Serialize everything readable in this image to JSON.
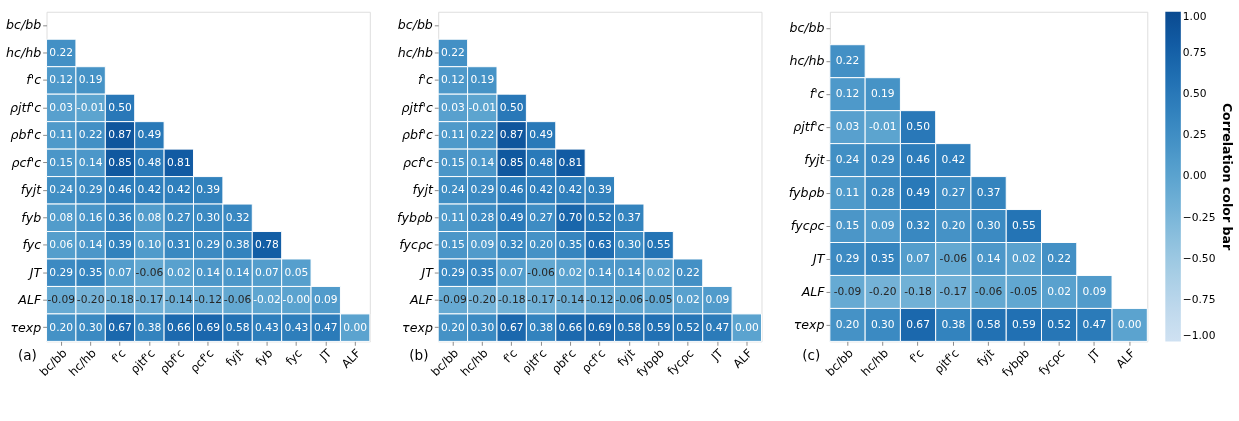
{
  "chart_data": [
    {
      "type": "heatmap",
      "annotations": [
        "(a)"
      ],
      "categories": [
        "bc/bb",
        "hc/hb",
        "f'c",
        "ρjtf'c",
        "ρbf'c",
        "ρcf'c",
        "fyjt",
        "fyb",
        "fyc",
        "JT",
        "ALF"
      ],
      "y_categories": [
        "bc/bb",
        "hc/hb",
        "f'c",
        "ρjtf'c",
        "ρbf'c",
        "ρcf'c",
        "fyjt",
        "fyb",
        "fyc",
        "JT",
        "ALF",
        "τexp"
      ],
      "cells": [
        [
          null,
          null,
          null,
          null,
          null,
          null,
          null,
          null,
          null,
          null,
          null
        ],
        [
          0.22,
          null,
          null,
          null,
          null,
          null,
          null,
          null,
          null,
          null,
          null
        ],
        [
          0.12,
          0.19,
          null,
          null,
          null,
          null,
          null,
          null,
          null,
          null,
          null
        ],
        [
          0.03,
          -0.01,
          0.5,
          null,
          null,
          null,
          null,
          null,
          null,
          null,
          null
        ],
        [
          0.11,
          0.22,
          0.87,
          0.49,
          null,
          null,
          null,
          null,
          null,
          null,
          null
        ],
        [
          0.15,
          0.14,
          0.85,
          0.48,
          0.81,
          null,
          null,
          null,
          null,
          null,
          null
        ],
        [
          0.24,
          0.29,
          0.46,
          0.42,
          0.42,
          0.39,
          null,
          null,
          null,
          null,
          null
        ],
        [
          0.08,
          0.16,
          0.36,
          0.08,
          0.27,
          0.3,
          0.32,
          null,
          null,
          null,
          null
        ],
        [
          0.06,
          0.14,
          0.39,
          0.1,
          0.31,
          0.29,
          0.38,
          0.78,
          null,
          null,
          null
        ],
        [
          0.29,
          0.35,
          0.07,
          -0.06,
          0.02,
          0.14,
          0.14,
          0.07,
          0.05,
          null,
          null
        ],
        [
          -0.09,
          -0.2,
          -0.18,
          -0.17,
          -0.14,
          -0.12,
          -0.06,
          -0.02,
          0.0,
          0.09,
          null
        ],
        [
          0.2,
          0.3,
          0.67,
          0.38,
          0.66,
          0.69,
          0.58,
          0.43,
          0.43,
          0.47,
          0.0
        ]
      ],
      "cell_labels": [
        [
          null,
          null,
          null,
          null,
          null,
          null,
          null,
          null,
          null,
          null,
          null
        ],
        [
          "0.22",
          null,
          null,
          null,
          null,
          null,
          null,
          null,
          null,
          null,
          null
        ],
        [
          "0.12",
          "0.19",
          null,
          null,
          null,
          null,
          null,
          null,
          null,
          null,
          null
        ],
        [
          "0.03",
          "-0.01",
          "0.50",
          null,
          null,
          null,
          null,
          null,
          null,
          null,
          null
        ],
        [
          "0.11",
          "0.22",
          "0.87",
          "0.49",
          null,
          null,
          null,
          null,
          null,
          null,
          null
        ],
        [
          "0.15",
          "0.14",
          "0.85",
          "0.48",
          "0.81",
          null,
          null,
          null,
          null,
          null,
          null
        ],
        [
          "0.24",
          "0.29",
          "0.46",
          "0.42",
          "0.42",
          "0.39",
          null,
          null,
          null,
          null,
          null
        ],
        [
          "0.08",
          "0.16",
          "0.36",
          "0.08",
          "0.27",
          "0.30",
          "0.32",
          null,
          null,
          null,
          null
        ],
        [
          "0.06",
          "0.14",
          "0.39",
          "0.10",
          "0.31",
          "0.29",
          "0.38",
          "0.78",
          null,
          null,
          null
        ],
        [
          "0.29",
          "0.35",
          "0.07",
          "-0.06",
          "0.02",
          "0.14",
          "0.14",
          "0.07",
          "0.05",
          null,
          null
        ],
        [
          "-0.09",
          "-0.20",
          "-0.18",
          "-0.17",
          "-0.14",
          "-0.12",
          "-0.06",
          "-0.02",
          "-0.00",
          "0.09",
          null
        ],
        [
          "0.20",
          "0.30",
          "0.67",
          "0.38",
          "0.66",
          "0.69",
          "0.58",
          "0.43",
          "0.43",
          "0.47",
          "0.00"
        ]
      ]
    },
    {
      "type": "heatmap",
      "annotations": [
        "(b)"
      ],
      "categories": [
        "bc/bb",
        "hc/hb",
        "f'c",
        "ρjtf'c",
        "ρbf'c",
        "ρcf'c",
        "fyjt",
        "fybρb",
        "fycρc",
        "JT",
        "ALF"
      ],
      "y_categories": [
        "bc/bb",
        "hc/hb",
        "f'c",
        "ρjtf'c",
        "ρbf'c",
        "ρcf'c",
        "fyjt",
        "fybρb",
        "fycρc",
        "JT",
        "ALF",
        "τexp"
      ],
      "cells": [
        [
          null,
          null,
          null,
          null,
          null,
          null,
          null,
          null,
          null,
          null,
          null
        ],
        [
          0.22,
          null,
          null,
          null,
          null,
          null,
          null,
          null,
          null,
          null,
          null
        ],
        [
          0.12,
          0.19,
          null,
          null,
          null,
          null,
          null,
          null,
          null,
          null,
          null
        ],
        [
          0.03,
          -0.01,
          0.5,
          null,
          null,
          null,
          null,
          null,
          null,
          null,
          null
        ],
        [
          0.11,
          0.22,
          0.87,
          0.49,
          null,
          null,
          null,
          null,
          null,
          null,
          null
        ],
        [
          0.15,
          0.14,
          0.85,
          0.48,
          0.81,
          null,
          null,
          null,
          null,
          null,
          null
        ],
        [
          0.24,
          0.29,
          0.46,
          0.42,
          0.42,
          0.39,
          null,
          null,
          null,
          null,
          null
        ],
        [
          0.11,
          0.28,
          0.49,
          0.27,
          0.7,
          0.52,
          0.37,
          null,
          null,
          null,
          null
        ],
        [
          0.15,
          0.09,
          0.32,
          0.2,
          0.35,
          0.63,
          0.3,
          0.55,
          null,
          null,
          null
        ],
        [
          0.29,
          0.35,
          0.07,
          -0.06,
          0.02,
          0.14,
          0.14,
          0.02,
          0.22,
          null,
          null
        ],
        [
          -0.09,
          -0.2,
          -0.18,
          -0.17,
          -0.14,
          -0.12,
          -0.06,
          -0.05,
          0.02,
          0.09,
          null
        ],
        [
          0.2,
          0.3,
          0.67,
          0.38,
          0.66,
          0.69,
          0.58,
          0.59,
          0.52,
          0.47,
          0.0
        ]
      ],
      "cell_labels": [
        [
          null,
          null,
          null,
          null,
          null,
          null,
          null,
          null,
          null,
          null,
          null
        ],
        [
          "0.22",
          null,
          null,
          null,
          null,
          null,
          null,
          null,
          null,
          null,
          null
        ],
        [
          "0.12",
          "0.19",
          null,
          null,
          null,
          null,
          null,
          null,
          null,
          null,
          null
        ],
        [
          "0.03",
          "-0.01",
          "0.50",
          null,
          null,
          null,
          null,
          null,
          null,
          null,
          null
        ],
        [
          "0.11",
          "0.22",
          "0.87",
          "0.49",
          null,
          null,
          null,
          null,
          null,
          null,
          null
        ],
        [
          "0.15",
          "0.14",
          "0.85",
          "0.48",
          "0.81",
          null,
          null,
          null,
          null,
          null,
          null
        ],
        [
          "0.24",
          "0.29",
          "0.46",
          "0.42",
          "0.42",
          "0.39",
          null,
          null,
          null,
          null,
          null
        ],
        [
          "0.11",
          "0.28",
          "0.49",
          "0.27",
          "0.70",
          "0.52",
          "0.37",
          null,
          null,
          null,
          null
        ],
        [
          "0.15",
          "0.09",
          "0.32",
          "0.20",
          "0.35",
          "0.63",
          "0.30",
          "0.55",
          null,
          null,
          null
        ],
        [
          "0.29",
          "0.35",
          "0.07",
          "-0.06",
          "0.02",
          "0.14",
          "0.14",
          "0.02",
          "0.22",
          null,
          null
        ],
        [
          "-0.09",
          "-0.20",
          "-0.18",
          "-0.17",
          "-0.14",
          "-0.12",
          "-0.06",
          "-0.05",
          "0.02",
          "0.09",
          null
        ],
        [
          "0.20",
          "0.30",
          "0.67",
          "0.38",
          "0.66",
          "0.69",
          "0.58",
          "0.59",
          "0.52",
          "0.47",
          "0.00"
        ]
      ]
    },
    {
      "type": "heatmap",
      "annotations": [
        "(c)"
      ],
      "categories": [
        "bc/bb",
        "hc/hb",
        "f'c",
        "ρjtf'c",
        "fyjt",
        "fybρb",
        "fycρc",
        "JT",
        "ALF"
      ],
      "y_categories": [
        "bc/bb",
        "hc/hb",
        "f'c",
        "ρjtf'c",
        "fyjt",
        "fybρb",
        "fycρc",
        "JT",
        "ALF",
        "τexp"
      ],
      "cells": [
        [
          null,
          null,
          null,
          null,
          null,
          null,
          null,
          null,
          null
        ],
        [
          0.22,
          null,
          null,
          null,
          null,
          null,
          null,
          null,
          null
        ],
        [
          0.12,
          0.19,
          null,
          null,
          null,
          null,
          null,
          null,
          null
        ],
        [
          0.03,
          -0.01,
          0.5,
          null,
          null,
          null,
          null,
          null,
          null
        ],
        [
          0.24,
          0.29,
          0.46,
          0.42,
          null,
          null,
          null,
          null,
          null
        ],
        [
          0.11,
          0.28,
          0.49,
          0.27,
          0.37,
          null,
          null,
          null,
          null
        ],
        [
          0.15,
          0.09,
          0.32,
          0.2,
          0.3,
          0.55,
          null,
          null,
          null
        ],
        [
          0.29,
          0.35,
          0.07,
          -0.06,
          0.14,
          0.02,
          0.22,
          null,
          null
        ],
        [
          -0.09,
          -0.2,
          -0.18,
          -0.17,
          -0.06,
          -0.05,
          0.02,
          0.09,
          null
        ],
        [
          0.2,
          0.3,
          0.67,
          0.38,
          0.58,
          0.59,
          0.52,
          0.47,
          0.0
        ]
      ],
      "cell_labels": [
        [
          null,
          null,
          null,
          null,
          null,
          null,
          null,
          null,
          null
        ],
        [
          "0.22",
          null,
          null,
          null,
          null,
          null,
          null,
          null,
          null
        ],
        [
          "0.12",
          "0.19",
          null,
          null,
          null,
          null,
          null,
          null,
          null
        ],
        [
          "0.03",
          "-0.01",
          "0.50",
          null,
          null,
          null,
          null,
          null,
          null
        ],
        [
          "0.24",
          "0.29",
          "0.46",
          "0.42",
          null,
          null,
          null,
          null,
          null
        ],
        [
          "0.11",
          "0.28",
          "0.49",
          "0.27",
          "0.37",
          null,
          null,
          null,
          null
        ],
        [
          "0.15",
          "0.09",
          "0.32",
          "0.20",
          "0.30",
          "0.55",
          null,
          null,
          null
        ],
        [
          "0.29",
          "0.35",
          "0.07",
          "-0.06",
          "0.14",
          "0.02",
          "0.22",
          null,
          null
        ],
        [
          "-0.09",
          "-0.20",
          "-0.18",
          "-0.17",
          "-0.06",
          "-0.05",
          "0.02",
          "0.09",
          null
        ],
        [
          "0.20",
          "0.30",
          "0.67",
          "0.38",
          "0.58",
          "0.59",
          "0.52",
          "0.47",
          "0.00"
        ]
      ],
      "clabel": "Correlation color bar",
      "clim": [
        -1,
        1
      ],
      "cticks": [
        {
          "value": -1,
          "label": "−1.00"
        },
        {
          "value": -0.75,
          "label": "−0.75"
        },
        {
          "value": -0.5,
          "label": "−0.50"
        },
        {
          "value": -0.25,
          "label": "−0.25"
        },
        {
          "value": 0,
          "label": "0.00"
        },
        {
          "value": 0.25,
          "label": "0.25"
        },
        {
          "value": 0.5,
          "label": "0.50"
        },
        {
          "value": 0.75,
          "label": "0.75"
        },
        {
          "value": 1,
          "label": "1.00"
        }
      ]
    }
  ]
}
